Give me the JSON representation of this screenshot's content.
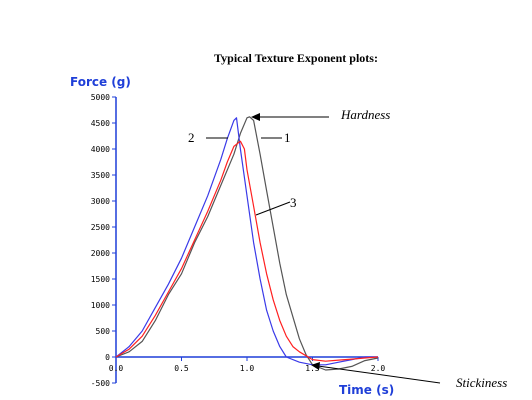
{
  "chart_data": {
    "type": "line",
    "title": "Typical Texture Exponent plots:",
    "ylabel": "Force (g)",
    "xlabel": "Time (s)",
    "xlim": [
      0,
      2.0
    ],
    "ylim": [
      -500,
      5000
    ],
    "xticks": [
      "0.0",
      "0.5",
      "1.0",
      "1.5",
      "2.0"
    ],
    "yticks": [
      "5000",
      "4500",
      "4000",
      "3500",
      "3000",
      "2500",
      "2000",
      "1500",
      "1000",
      "500",
      "0",
      "-500"
    ],
    "grid": false,
    "legend": "none",
    "series": [
      {
        "name": "1",
        "color": "#555555",
        "x": [
          0.0,
          0.1,
          0.2,
          0.3,
          0.4,
          0.5,
          0.6,
          0.7,
          0.8,
          0.9,
          0.95,
          1.0,
          1.02,
          1.05,
          1.1,
          1.15,
          1.2,
          1.25,
          1.3,
          1.4,
          1.45,
          1.5,
          1.6,
          1.7,
          1.8,
          1.9,
          2.0
        ],
        "y": [
          0,
          100,
          300,
          700,
          1200,
          1600,
          2200,
          2700,
          3300,
          3900,
          4300,
          4600,
          4620,
          4550,
          3900,
          3200,
          2500,
          1800,
          1200,
          350,
          50,
          -150,
          -250,
          -230,
          -180,
          -70,
          -20
        ]
      },
      {
        "name": "2",
        "color": "#3a3ae8",
        "x": [
          0.0,
          0.1,
          0.2,
          0.3,
          0.4,
          0.5,
          0.6,
          0.7,
          0.8,
          0.85,
          0.9,
          0.92,
          0.95,
          1.0,
          1.05,
          1.1,
          1.15,
          1.2,
          1.25,
          1.3,
          1.4,
          1.5,
          1.6,
          1.7,
          1.8,
          1.9,
          2.0
        ],
        "y": [
          0,
          200,
          500,
          950,
          1400,
          1900,
          2500,
          3100,
          3800,
          4200,
          4550,
          4600,
          4000,
          3100,
          2200,
          1500,
          900,
          500,
          200,
          0,
          -100,
          -150,
          -150,
          -100,
          -50,
          0,
          0
        ]
      },
      {
        "name": "3",
        "color": "#ff2020",
        "x": [
          0.0,
          0.1,
          0.2,
          0.3,
          0.4,
          0.5,
          0.6,
          0.7,
          0.8,
          0.85,
          0.9,
          0.95,
          0.98,
          1.0,
          1.05,
          1.1,
          1.15,
          1.2,
          1.25,
          1.3,
          1.35,
          1.4,
          1.5,
          1.6,
          1.7,
          1.8,
          1.9,
          2.0
        ],
        "y": [
          0,
          150,
          400,
          800,
          1250,
          1700,
          2250,
          2800,
          3400,
          3750,
          4050,
          4150,
          4000,
          3600,
          2900,
          2200,
          1600,
          1100,
          700,
          400,
          200,
          100,
          -50,
          -80,
          -60,
          -40,
          -20,
          0
        ]
      }
    ],
    "annotations": [
      "Hardness",
      "Stickiness",
      "1",
      "2",
      "3"
    ]
  }
}
